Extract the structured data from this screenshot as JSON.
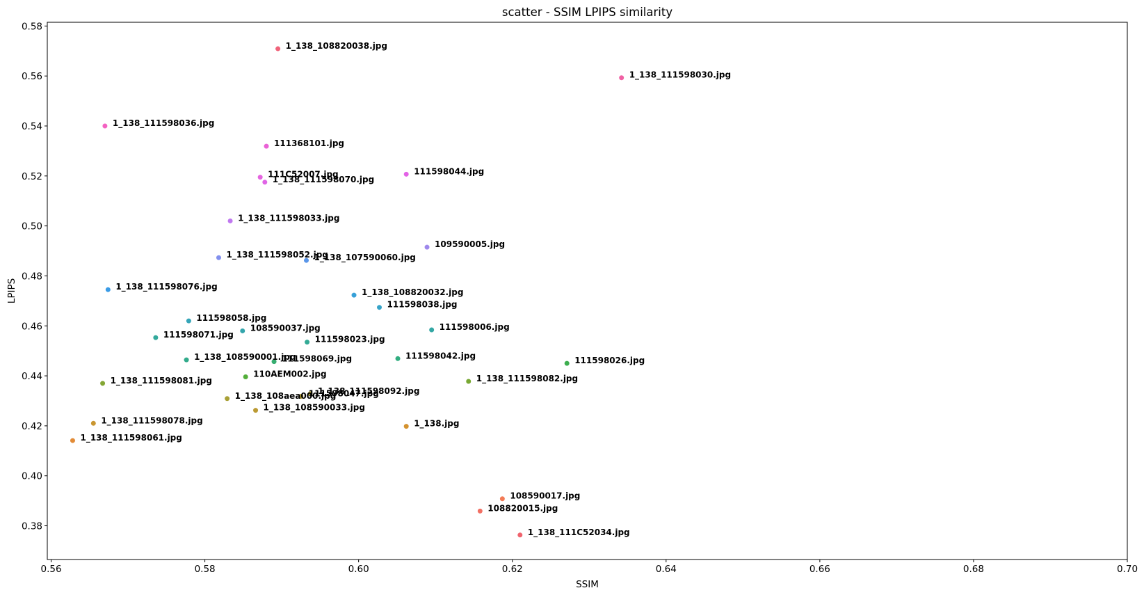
{
  "chart_data": {
    "type": "scatter",
    "title": "scatter - SSIM LPIPS similarity",
    "xlabel": "SSIM",
    "ylabel": "LPIPS",
    "xlim": [
      0.5595,
      0.7
    ],
    "ylim": [
      0.3665,
      0.5815
    ],
    "xticks": [
      "0.56",
      "0.58",
      "0.60",
      "0.62",
      "0.64",
      "0.66",
      "0.68",
      "0.70"
    ],
    "yticks": [
      "0.38",
      "0.40",
      "0.42",
      "0.44",
      "0.46",
      "0.48",
      "0.50",
      "0.52",
      "0.54",
      "0.56",
      "0.58"
    ],
    "grid": false,
    "points": [
      {
        "label": "1_138_108820038.jpg",
        "x": 0.5895,
        "y": 0.5709,
        "color": "#f0637a"
      },
      {
        "label": "1_138_111598030.jpg",
        "x": 0.6342,
        "y": 0.5593,
        "color": "#f061a4"
      },
      {
        "label": "1_138_111598036.jpg",
        "x": 0.567,
        "y": 0.54,
        "color": "#f462c2"
      },
      {
        "label": "111368101.jpg",
        "x": 0.588,
        "y": 0.5319,
        "color": "#ea62d6"
      },
      {
        "label": "111C52007.jpg",
        "x": 0.5872,
        "y": 0.5195,
        "color": "#e565e0"
      },
      {
        "label": "1_138_111598070.jpg",
        "x": 0.5878,
        "y": 0.5175,
        "color": "#e065e6"
      },
      {
        "label": "111598044.jpg",
        "x": 0.6062,
        "y": 0.5207,
        "color": "#e362e6"
      },
      {
        "label": "1_138_111598033.jpg",
        "x": 0.5833,
        "y": 0.502,
        "color": "#c078f0"
      },
      {
        "label": "109590005.jpg",
        "x": 0.6089,
        "y": 0.4915,
        "color": "#9e88ec"
      },
      {
        "label": "1_138_111598052.jpg",
        "x": 0.5818,
        "y": 0.4873,
        "color": "#8290ee"
      },
      {
        "label": "1_138_107590060.jpg",
        "x": 0.5932,
        "y": 0.4862,
        "color": "#5a96e9"
      },
      {
        "label": "1_138_111598076.jpg",
        "x": 0.5674,
        "y": 0.4745,
        "color": "#3a9be6"
      },
      {
        "label": "1_138_108820032.jpg",
        "x": 0.5994,
        "y": 0.4723,
        "color": "#37a0d8"
      },
      {
        "label": "111598038.jpg",
        "x": 0.6027,
        "y": 0.4674,
        "color": "#36a3c8"
      },
      {
        "label": "111598058.jpg",
        "x": 0.5779,
        "y": 0.462,
        "color": "#35a5b8"
      },
      {
        "label": "108590037.jpg",
        "x": 0.5849,
        "y": 0.458,
        "color": "#34a5ac"
      },
      {
        "label": "111598006.jpg",
        "x": 0.6095,
        "y": 0.4584,
        "color": "#33a7a4"
      },
      {
        "label": "111598071.jpg",
        "x": 0.5736,
        "y": 0.4553,
        "color": "#33a99c"
      },
      {
        "label": "111598023.jpg",
        "x": 0.5933,
        "y": 0.4535,
        "color": "#33aa95"
      },
      {
        "label": "1_138_108590001.jpg",
        "x": 0.5776,
        "y": 0.4464,
        "color": "#32ab8b"
      },
      {
        "label": "111598042.jpg",
        "x": 0.6051,
        "y": 0.4469,
        "color": "#31ad80"
      },
      {
        "label": "111598069.jpg",
        "x": 0.589,
        "y": 0.4457,
        "color": "#36ad70"
      },
      {
        "label": "111598026.jpg",
        "x": 0.6271,
        "y": 0.445,
        "color": "#3dae4f"
      },
      {
        "label": "110AEM002.jpg",
        "x": 0.5853,
        "y": 0.4396,
        "color": "#53ae3a"
      },
      {
        "label": "1_138_111598081.jpg",
        "x": 0.5667,
        "y": 0.437,
        "color": "#83a634"
      },
      {
        "label": "1_138_111598082.jpg",
        "x": 0.6143,
        "y": 0.4378,
        "color": "#78a833"
      },
      {
        "label": "1_138_108aea000.jpg",
        "x": 0.5829,
        "y": 0.4309,
        "color": "#a8a036"
      },
      {
        "label": "111598047.jpg",
        "x": 0.5925,
        "y": 0.4318,
        "color": "#b39c35"
      },
      {
        "label": "1_138_111598092.jpg",
        "x": 0.5937,
        "y": 0.4328,
        "color": "#ad9e34"
      },
      {
        "label": "1_138_108590033.jpg",
        "x": 0.5866,
        "y": 0.4262,
        "color": "#bb9a33"
      },
      {
        "label": "1_138_111598078.jpg",
        "x": 0.5655,
        "y": 0.421,
        "color": "#c99631"
      },
      {
        "label": "1_138.jpg",
        "x": 0.6062,
        "y": 0.4198,
        "color": "#d4922f"
      },
      {
        "label": "1_138_111598061.jpg",
        "x": 0.5628,
        "y": 0.4141,
        "color": "#e28b37"
      },
      {
        "label": "108590017.jpg",
        "x": 0.6187,
        "y": 0.3908,
        "color": "#f37b56"
      },
      {
        "label": "108820015.jpg",
        "x": 0.6158,
        "y": 0.3859,
        "color": "#f27064"
      },
      {
        "label": "1_138_111C52034.jpg",
        "x": 0.621,
        "y": 0.3763,
        "color": "#f0636d"
      }
    ]
  }
}
